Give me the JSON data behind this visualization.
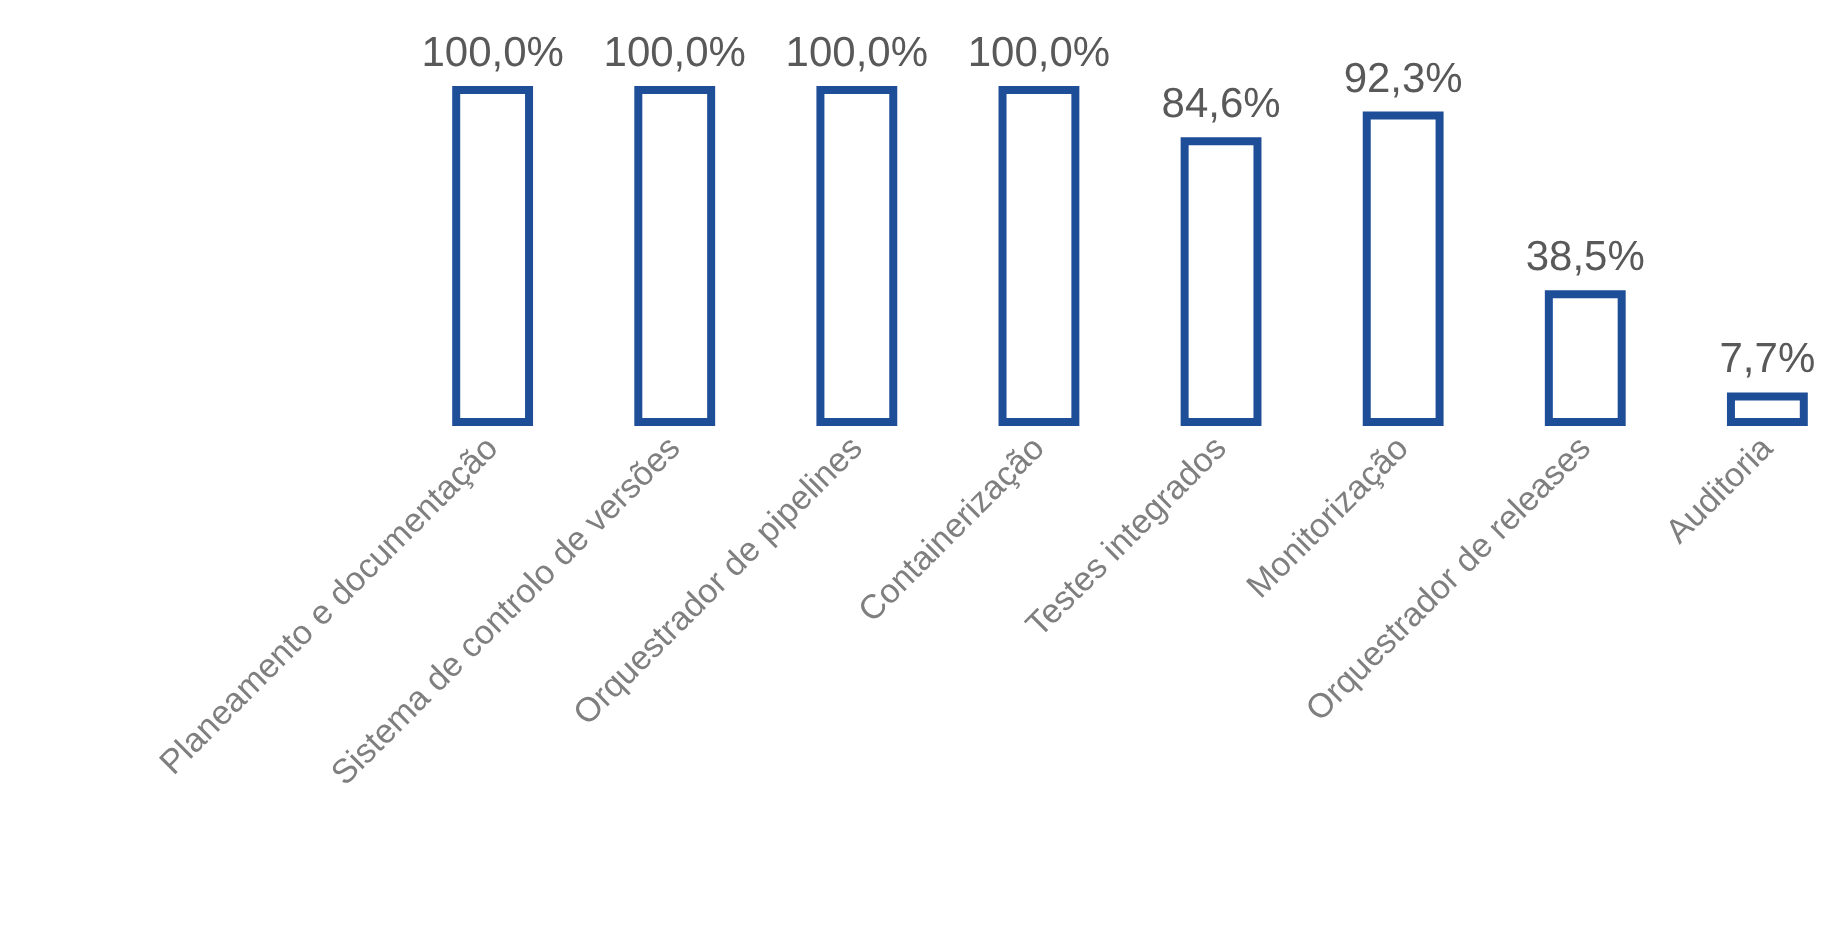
{
  "chart_data": {
    "type": "bar",
    "categories": [
      "Planeamento e documentação",
      "Sistema de controlo de versões",
      "Orquestrador de pipelines",
      "Containerização",
      "Testes integrados",
      "Monitorização",
      "Orquestrador de releases",
      "Auditoria"
    ],
    "values": [
      100,
      100,
      100,
      100,
      84.6,
      92.3,
      38.5,
      7.7
    ],
    "value_labels": [
      "100,0%",
      "100,0%",
      "100,0%",
      "100,0%",
      "84,6%",
      "92,3%",
      "38,5%",
      "7,7%"
    ],
    "color": "#1f4e99"
  }
}
